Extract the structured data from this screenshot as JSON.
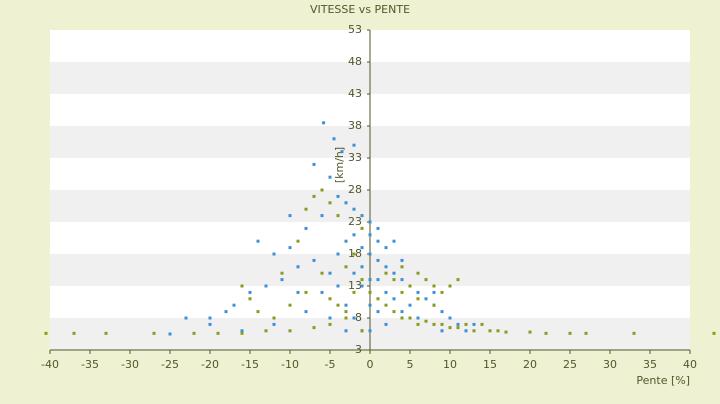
{
  "chart_data": {
    "type": "scatter",
    "title": "VITESSE vs PENTE",
    "x_label": "Pente [%]",
    "y_label": "[km/h]",
    "xlim": [
      -40,
      40
    ],
    "ylim": [
      3,
      53
    ],
    "xticks": [
      -40,
      -35,
      -30,
      -25,
      -20,
      -15,
      -10,
      -5,
      0,
      5,
      10,
      15,
      20,
      25,
      30,
      35,
      40
    ],
    "yticks": [
      3,
      8,
      13,
      18,
      23,
      28,
      33,
      38,
      43,
      48,
      53
    ],
    "grid": true,
    "series": [
      {
        "color": "#3d8fd6",
        "x": [
          -5.8,
          -4.5,
          -3.5,
          -2,
          -7,
          -5,
          -4,
          -3,
          -2,
          -1,
          0,
          1,
          -6,
          -8,
          -14,
          -12,
          -10,
          -9,
          -11,
          -13,
          -15,
          -17,
          -18,
          -20,
          -23,
          -16,
          -12,
          -8,
          -6,
          -5,
          -4,
          -3,
          -2,
          -1,
          0,
          0,
          0,
          0,
          1,
          2,
          3,
          4,
          5,
          6,
          7,
          8,
          9,
          10,
          11,
          12,
          13,
          3,
          2,
          1,
          4,
          5,
          6,
          -1,
          -2,
          -3,
          -4,
          -1,
          2,
          1,
          3,
          -2,
          -1,
          0,
          1,
          4,
          2,
          -3,
          -5,
          8,
          9,
          -9,
          -7,
          -10,
          -20,
          -25
        ],
        "y": [
          38.5,
          36,
          34,
          35,
          32,
          30,
          27,
          26,
          25,
          24,
          23,
          22,
          24,
          22,
          20,
          18,
          19,
          16,
          14,
          13,
          12,
          10,
          9,
          7,
          8,
          6,
          7,
          9,
          12,
          15,
          18,
          20,
          21,
          19,
          18,
          14,
          10,
          6,
          17,
          16,
          15,
          14,
          13,
          12,
          11,
          10,
          9,
          8,
          7,
          6,
          7,
          20,
          12,
          9,
          9,
          10,
          8,
          6,
          8,
          10,
          13,
          13,
          19,
          14,
          11,
          15,
          16,
          21,
          20,
          17,
          7,
          6,
          8,
          12,
          6,
          12,
          17,
          24,
          8,
          5.5
        ]
      },
      {
        "color": "#8a9a1c",
        "x": [
          -40.5,
          -37,
          -33,
          -27,
          -22,
          -19,
          -16,
          -13,
          -10,
          -7,
          -5,
          -3,
          -1,
          20,
          22,
          25,
          27,
          33,
          43,
          -16,
          -15,
          -14,
          -12,
          -11,
          -9,
          -8,
          -7,
          -6,
          -5,
          -4,
          -5,
          -4,
          -3,
          -2,
          -3,
          -2,
          -1,
          0,
          1,
          2,
          3,
          4,
          5,
          6,
          7,
          8,
          9,
          10,
          11,
          12,
          13,
          14,
          15,
          16,
          17,
          2,
          3,
          4,
          5,
          6,
          7,
          8,
          9,
          10,
          11,
          8,
          6,
          4,
          -1,
          -6,
          -8,
          -10
        ],
        "y": [
          5.6,
          5.6,
          5.6,
          5.6,
          5.6,
          5.6,
          5.6,
          6,
          6,
          6.5,
          7,
          8,
          6,
          5.8,
          5.6,
          5.6,
          5.6,
          5.6,
          5.6,
          13,
          11,
          9,
          8,
          15,
          20,
          25,
          27,
          28,
          26,
          24,
          11,
          10,
          9,
          12,
          16,
          18,
          14,
          12,
          11,
          10,
          9,
          8,
          8,
          7,
          7.5,
          7,
          7,
          6.5,
          6.5,
          7,
          6,
          7,
          6,
          6,
          5.8,
          15,
          14,
          16,
          13,
          15,
          14,
          13,
          12,
          13,
          14,
          10,
          11,
          12,
          22,
          15,
          12,
          10
        ]
      }
    ]
  }
}
